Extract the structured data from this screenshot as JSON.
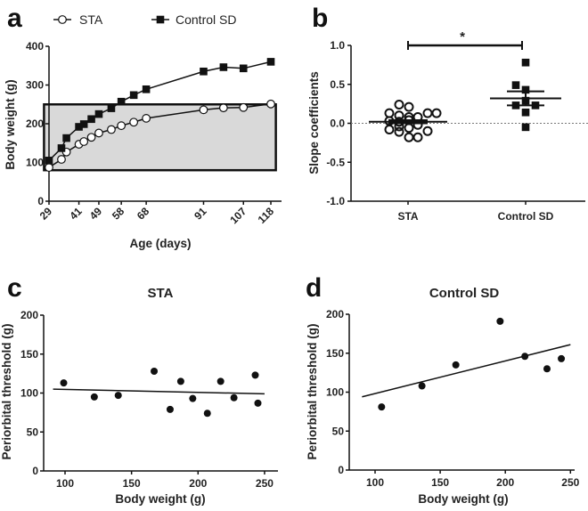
{
  "chart_data": [
    {
      "panel": "a",
      "type": "line",
      "xlabel": "Age (days)",
      "ylabel": "Body weight (g)",
      "xlim": [
        29,
        121
      ],
      "ylim": [
        0,
        400
      ],
      "xticks": [
        29,
        41,
        49,
        58,
        68,
        91,
        107,
        118
      ],
      "yticks": [
        0,
        100,
        200,
        300,
        400
      ],
      "legend_position": "top",
      "shaded_region": {
        "x": [
          27,
          120
        ],
        "y": [
          80,
          250
        ],
        "color": "#d9d9d9"
      },
      "x": [
        29,
        34,
        36,
        41,
        43,
        46,
        49,
        54,
        58,
        63,
        68,
        91,
        99,
        107,
        118
      ],
      "series": [
        {
          "name": "STA",
          "marker": "open-circle",
          "values": [
            87,
            108,
            127,
            147,
            154,
            165,
            176,
            185,
            195,
            204,
            214,
            236,
            241,
            242,
            251
          ]
        },
        {
          "name": "Control SD",
          "marker": "filled-square",
          "values": [
            105,
            137,
            163,
            192,
            199,
            212,
            225,
            240,
            257,
            274,
            289,
            335,
            346,
            343,
            360
          ]
        }
      ]
    },
    {
      "panel": "b",
      "type": "scatter",
      "ylabel": "Slope coefficients",
      "ylim": [
        -1.0,
        1.0
      ],
      "yticks": [
        "-1.0",
        "-0.5",
        "0.0",
        "0.5",
        "1.0"
      ],
      "categories": [
        "STA",
        "Control SD"
      ],
      "significance": "*",
      "series": [
        {
          "name": "STA",
          "marker": "open-circle",
          "values": [
            0.24,
            0.21,
            0.13,
            0.13,
            0.13,
            0.1,
            0.08,
            0.08,
            0.03,
            0.02,
            0.04,
            -0.02,
            -0.04,
            -0.06,
            -0.08,
            -0.1,
            -0.11,
            -0.18,
            -0.18
          ],
          "mean": 0.02,
          "sem": [
            0.0,
            0.04
          ]
        },
        {
          "name": "Control SD",
          "marker": "filled-square",
          "values": [
            0.78,
            0.49,
            0.43,
            0.29,
            0.23,
            0.23,
            0.14,
            -0.05
          ],
          "mean": 0.32,
          "sem": [
            0.23,
            0.41
          ]
        }
      ]
    },
    {
      "panel": "c",
      "type": "scatter",
      "title": "STA",
      "xlabel": "Body weight (g)",
      "ylabel": "Periorbital threshold (g)",
      "xlim": [
        84,
        260
      ],
      "ylim": [
        0,
        200
      ],
      "xticks": [
        100,
        150,
        200,
        250
      ],
      "yticks": [
        0,
        50,
        100,
        150,
        200
      ],
      "points": [
        [
          99,
          113
        ],
        [
          122,
          95
        ],
        [
          140,
          97
        ],
        [
          167,
          128
        ],
        [
          179,
          79
        ],
        [
          187,
          115
        ],
        [
          196,
          93
        ],
        [
          207,
          74
        ],
        [
          217,
          115
        ],
        [
          227,
          94
        ],
        [
          243,
          123
        ],
        [
          245,
          87
        ]
      ],
      "fit": [
        [
          91,
          105
        ],
        [
          250,
          99
        ]
      ]
    },
    {
      "panel": "d",
      "type": "scatter",
      "title": "Control SD",
      "xlabel": "Body weight (g)",
      "ylabel": "Periorbital threshold (g)",
      "xlim": [
        80,
        258
      ],
      "ylim": [
        0,
        200
      ],
      "xticks": [
        100,
        150,
        200,
        250
      ],
      "yticks": [
        0,
        50,
        100,
        150,
        200
      ],
      "points": [
        [
          105,
          81
        ],
        [
          136,
          108
        ],
        [
          162,
          135
        ],
        [
          196,
          191
        ],
        [
          215,
          146
        ],
        [
          232,
          130
        ],
        [
          243,
          143
        ]
      ],
      "fit": [
        [
          90,
          94
        ],
        [
          250,
          161
        ]
      ]
    }
  ]
}
